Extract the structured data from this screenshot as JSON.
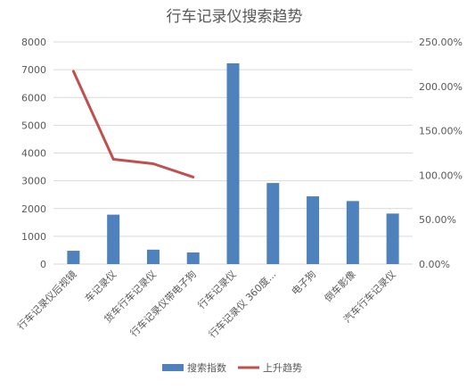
{
  "chart_data": {
    "type": "bar",
    "title": "行车记录仪搜索趋势",
    "categories": [
      "行车记录仪后视镜",
      "车记录仪",
      "货车行车记录仪",
      "行车记录仪带电子狗",
      "行车记录仪",
      "行车记录仪 360度...",
      "电子狗",
      "倒车影像",
      "汽车行车记录仪"
    ],
    "series": [
      {
        "name": "搜索指数",
        "type": "bar",
        "axis": "left",
        "color": "#4f81bd",
        "values": [
          480,
          1780,
          520,
          420,
          7230,
          2920,
          2440,
          2270,
          1820
        ]
      },
      {
        "name": "上升趋势",
        "type": "line",
        "axis": "right",
        "color": "#c0504d",
        "values": [
          2.17,
          1.18,
          1.13,
          0.98,
          null,
          null,
          null,
          null,
          null
        ]
      }
    ],
    "y_left": {
      "range": [
        0,
        8000
      ],
      "ticks": [
        "0",
        "1000",
        "2000",
        "3000",
        "4000",
        "5000",
        "6000",
        "7000",
        "8000"
      ]
    },
    "y_right": {
      "range": [
        0,
        2.5
      ],
      "ticks": [
        "0.00%",
        "50.00%",
        "100.00%",
        "150.00%",
        "200.00%",
        "250.00%"
      ]
    },
    "grid": true,
    "legend": "bottom"
  }
}
